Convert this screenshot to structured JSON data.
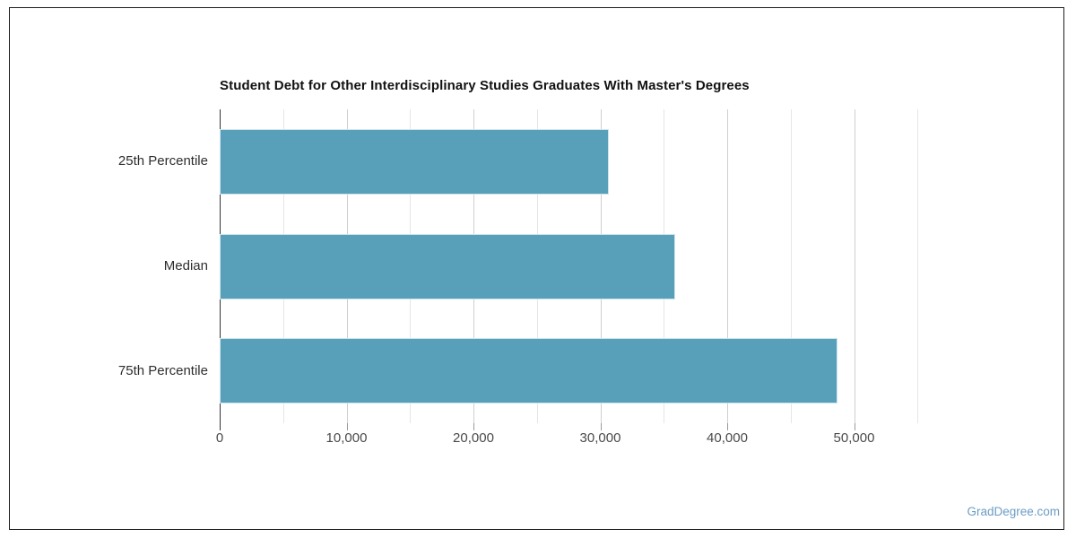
{
  "frame": {
    "border_color": "#1f1f1f",
    "background": "#ffffff"
  },
  "watermark": {
    "text": "GradDegree.com",
    "color": "#6b9cc5"
  },
  "chart_data": {
    "type": "bar",
    "orientation": "horizontal",
    "title": "Student Debt for Other Interdisciplinary Studies Graduates With Master's Degrees",
    "categories": [
      "25th Percentile",
      "Median",
      "75th Percentile"
    ],
    "values": [
      30700,
      35900,
      48700
    ],
    "xlabel": "",
    "ylabel": "",
    "xlim": [
      0,
      57600
    ],
    "x_ticks": [
      0,
      10000,
      20000,
      30000,
      40000,
      50000
    ],
    "x_tick_labels": [
      "0",
      "10,000",
      "20,000",
      "30,000",
      "40,000",
      "50,000"
    ],
    "minor_grid_step": 5000,
    "grid": true,
    "legend": false,
    "bar_color": "#58a0ba",
    "bar_border_color": "#cfe4ec"
  }
}
